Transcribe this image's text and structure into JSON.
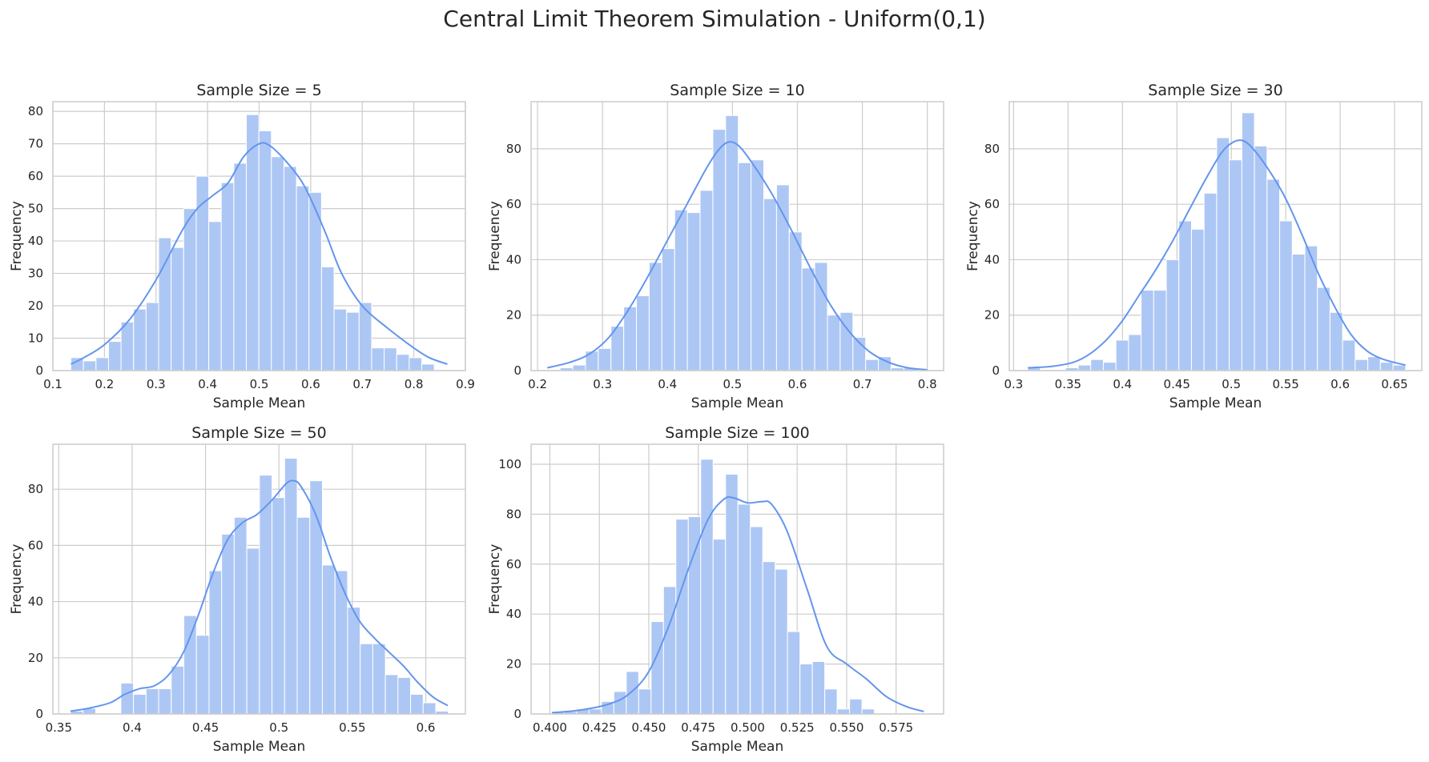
{
  "figure": {
    "suptitle": "Central Limit Theorem Simulation - Uniform(0,1)",
    "bar_color": "#adc7f5",
    "line_color": "#6495ed",
    "grid_color": "#cccccc"
  },
  "chart_data": [
    {
      "type": "bar",
      "title": "Sample Size = 5",
      "xlabel": "Sample Mean",
      "ylabel": "Frequency",
      "xlim": [
        0.1,
        0.9
      ],
      "ylim": [
        0,
        83
      ],
      "xticks": [
        0.1,
        0.2,
        0.3,
        0.4,
        0.5,
        0.6,
        0.7,
        0.8,
        0.9
      ],
      "yticks": [
        0,
        10,
        20,
        30,
        40,
        50,
        60,
        70,
        80
      ],
      "bins_start": 0.135,
      "bin_width": 0.0243,
      "counts": [
        4,
        3,
        4,
        9,
        15,
        19,
        21,
        41,
        38,
        50,
        60,
        46,
        58,
        64,
        79,
        74,
        66,
        63,
        57,
        55,
        32,
        19,
        18,
        21,
        7,
        7,
        5,
        4,
        2
      ],
      "kde": {
        "x": [
          0.135,
          0.16,
          0.2,
          0.25,
          0.3,
          0.35,
          0.38,
          0.41,
          0.44,
          0.47,
          0.5,
          0.52,
          0.55,
          0.58,
          0.6,
          0.63,
          0.66,
          0.7,
          0.75,
          0.8,
          0.83,
          0.865
        ],
        "y": [
          2,
          4,
          8,
          16,
          28,
          43,
          50,
          54,
          58,
          66,
          70,
          69.5,
          65,
          59,
          53,
          42,
          30,
          20,
          13,
          7,
          4,
          2
        ]
      }
    },
    {
      "type": "bar",
      "title": "Sample Size = 10",
      "xlabel": "Sample Mean",
      "ylabel": "Frequency",
      "xlim": [
        0.19,
        0.825
      ],
      "ylim": [
        0,
        97
      ],
      "xticks": [
        0.2,
        0.3,
        0.4,
        0.5,
        0.6,
        0.7,
        0.8
      ],
      "yticks": [
        0,
        20,
        40,
        60,
        80
      ],
      "bins_start": 0.215,
      "bin_width": 0.0196,
      "counts": [
        0,
        1,
        2,
        7,
        8,
        16,
        23,
        27,
        39,
        44,
        58,
        57,
        65,
        87,
        92,
        75,
        76,
        62,
        67,
        50,
        37,
        39,
        20,
        21,
        12,
        4,
        5,
        1,
        1,
        0
      ],
      "kde": {
        "x": [
          0.215,
          0.25,
          0.28,
          0.31,
          0.34,
          0.37,
          0.4,
          0.43,
          0.46,
          0.48,
          0.495,
          0.51,
          0.53,
          0.56,
          0.59,
          0.62,
          0.65,
          0.68,
          0.71,
          0.74,
          0.77,
          0.8
        ],
        "y": [
          1,
          3,
          6,
          12,
          22,
          34,
          47,
          60,
          73,
          80,
          82.5,
          81,
          75,
          64,
          51,
          37,
          24,
          14,
          7,
          3,
          1,
          0.3
        ]
      }
    },
    {
      "type": "bar",
      "title": "Sample Size = 30",
      "xlabel": "Sample Mean",
      "ylabel": "Frequency",
      "xlim": [
        0.296,
        0.675
      ],
      "ylim": [
        0,
        97
      ],
      "xticks": [
        0.3,
        0.35,
        0.4,
        0.45,
        0.5,
        0.55,
        0.6,
        0.65
      ],
      "yticks": [
        0,
        20,
        40,
        60,
        80
      ],
      "bins_start": 0.313,
      "bin_width": 0.01157,
      "counts": [
        1,
        0,
        0,
        1,
        2,
        4,
        3,
        11,
        13,
        29,
        29,
        40,
        54,
        51,
        64,
        84,
        76,
        93,
        81,
        69,
        54,
        42,
        45,
        30,
        21,
        11,
        4,
        5,
        3,
        2
      ],
      "kde": {
        "x": [
          0.313,
          0.335,
          0.355,
          0.37,
          0.385,
          0.4,
          0.415,
          0.43,
          0.445,
          0.46,
          0.475,
          0.49,
          0.5,
          0.51,
          0.52,
          0.535,
          0.55,
          0.565,
          0.58,
          0.595,
          0.61,
          0.625,
          0.64,
          0.66
        ],
        "y": [
          1,
          1.5,
          3,
          6,
          11,
          18,
          27,
          36,
          46,
          57,
          68,
          78,
          82,
          83,
          80,
          72,
          62,
          49,
          35,
          23,
          13,
          7,
          4,
          2
        ]
      }
    },
    {
      "type": "bar",
      "title": "Sample Size = 50",
      "xlabel": "Sample Mean",
      "ylabel": "Frequency",
      "xlim": [
        0.346,
        0.627
      ],
      "ylim": [
        0,
        96
      ],
      "xticks": [
        0.35,
        0.4,
        0.45,
        0.5,
        0.55,
        0.6
      ],
      "yticks": [
        0,
        20,
        40,
        60,
        80
      ],
      "bins_start": 0.358,
      "bin_width": 0.00858,
      "counts": [
        1,
        2,
        0,
        0,
        11,
        7,
        9,
        9,
        17,
        35,
        28,
        51,
        64,
        70,
        59,
        85,
        77,
        91,
        70,
        83,
        53,
        51,
        38,
        25,
        25,
        14,
        13,
        7,
        4,
        1
      ],
      "kde": {
        "x": [
          0.358,
          0.37,
          0.385,
          0.395,
          0.405,
          0.415,
          0.425,
          0.435,
          0.445,
          0.455,
          0.465,
          0.475,
          0.485,
          0.495,
          0.505,
          0.51,
          0.515,
          0.525,
          0.535,
          0.545,
          0.555,
          0.565,
          0.575,
          0.585,
          0.595,
          0.605,
          0.615
        ],
        "y": [
          1,
          2,
          4,
          7,
          9,
          10,
          14,
          22,
          35,
          50,
          62,
          68,
          71,
          76,
          82,
          83,
          81,
          71,
          56,
          43,
          33,
          27,
          22,
          17,
          11,
          6,
          3
        ]
      }
    },
    {
      "type": "bar",
      "title": "Sample Size = 100",
      "xlabel": "Sample Mean",
      "ylabel": "Frequency",
      "xlim": [
        0.3905,
        0.599
      ],
      "ylim": [
        0,
        108
      ],
      "xticks": [
        0.4,
        0.425,
        0.45,
        0.475,
        0.5,
        0.525,
        0.55,
        0.575
      ],
      "xtick_labels": [
        "0.400",
        "0.425",
        "0.450",
        "0.475",
        "0.500",
        "0.525",
        "0.550",
        "0.575"
      ],
      "yticks": [
        0,
        20,
        40,
        60,
        80,
        100
      ],
      "bins_start": 0.401,
      "bin_width": 0.00627,
      "counts": [
        1,
        1,
        2,
        2,
        5,
        9,
        17,
        10,
        37,
        51,
        78,
        79,
        102,
        70,
        96,
        84,
        75,
        61,
        58,
        33,
        20,
        21,
        10,
        2,
        6,
        2
      ],
      "kde": {
        "x": [
          0.401,
          0.415,
          0.43,
          0.44,
          0.45,
          0.46,
          0.47,
          0.48,
          0.488,
          0.493,
          0.5,
          0.507,
          0.512,
          0.52,
          0.53,
          0.54,
          0.55,
          0.56,
          0.57,
          0.58,
          0.589
        ],
        "y": [
          0.5,
          1.5,
          4,
          8,
          17,
          35,
          58,
          78,
          86,
          86.5,
          84.5,
          85,
          84,
          73,
          50,
          27,
          20,
          14,
          7,
          3,
          1
        ]
      }
    }
  ]
}
